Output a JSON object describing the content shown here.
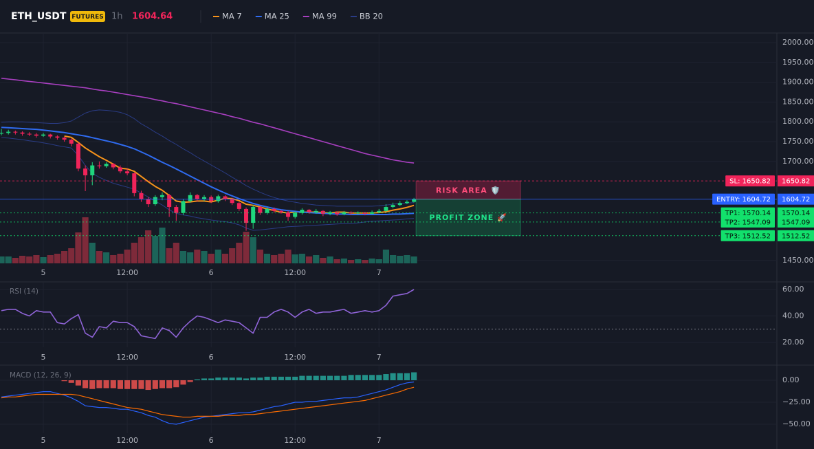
{
  "header": {
    "symbol": "ETH_USDT",
    "badge": "FUTURES",
    "interval": "1h",
    "last_price": "1604.64"
  },
  "chart_data": [
    {
      "type": "candlestick",
      "xlim": [
        -0.2,
        110.9
      ],
      "xticks": [
        {
          "value": 6,
          "label": "5"
        },
        {
          "value": 18,
          "label": "12:00"
        },
        {
          "value": 30,
          "label": "6"
        },
        {
          "value": 42,
          "label": "12:00"
        },
        {
          "value": 54,
          "label": "7"
        }
      ],
      "ylim": [
        1437.5,
        2024.3
      ],
      "yticks": [
        {
          "value": 2000,
          "label": "2000.00"
        },
        {
          "value": 1950,
          "label": "1950.00"
        },
        {
          "value": 1900,
          "label": "1900.00"
        },
        {
          "value": 1850,
          "label": "1850.00"
        },
        {
          "value": 1800,
          "label": "1800.00"
        },
        {
          "value": 1750,
          "label": "1750.00"
        },
        {
          "value": 1700,
          "label": "1700.00"
        },
        {
          "value": 1450,
          "label": "1450.00"
        }
      ],
      "grid": true,
      "up_color": "#1fd67d",
      "down_color": "#f0245a",
      "volume_up_color": "#1c6459",
      "volume_down_color": "#7e2a3a",
      "ohlc": [
        [
          1770,
          1782,
          1766,
          1772
        ],
        [
          1772,
          1780,
          1768,
          1775
        ],
        [
          1775,
          1778,
          1768,
          1773
        ],
        [
          1773,
          1776,
          1765,
          1770
        ],
        [
          1770,
          1774,
          1764,
          1768
        ],
        [
          1768,
          1772,
          1760,
          1765
        ],
        [
          1765,
          1772,
          1762,
          1768
        ],
        [
          1768,
          1770,
          1758,
          1763
        ],
        [
          1763,
          1766,
          1755,
          1760
        ],
        [
          1760,
          1762,
          1750,
          1755
        ],
        [
          1755,
          1758,
          1738,
          1745
        ],
        [
          1745,
          1748,
          1675,
          1682
        ],
        [
          1682,
          1690,
          1625,
          1665
        ],
        [
          1665,
          1698,
          1640,
          1690
        ],
        [
          1690,
          1700,
          1682,
          1688
        ],
        [
          1688,
          1698,
          1684,
          1694
        ],
        [
          1694,
          1696,
          1680,
          1685
        ],
        [
          1685,
          1690,
          1670,
          1675
        ],
        [
          1675,
          1682,
          1665,
          1670
        ],
        [
          1670,
          1672,
          1612,
          1620
        ],
        [
          1620,
          1626,
          1598,
          1605
        ],
        [
          1605,
          1610,
          1585,
          1592
        ],
        [
          1592,
          1615,
          1588,
          1610
        ],
        [
          1610,
          1622,
          1602,
          1615
        ],
        [
          1615,
          1618,
          1560,
          1585
        ],
        [
          1585,
          1590,
          1550,
          1570
        ],
        [
          1570,
          1605,
          1565,
          1600
        ],
        [
          1600,
          1622,
          1596,
          1615
        ],
        [
          1615,
          1618,
          1598,
          1605
        ],
        [
          1605,
          1615,
          1600,
          1610
        ],
        [
          1610,
          1614,
          1595,
          1600
        ],
        [
          1600,
          1616,
          1596,
          1612
        ],
        [
          1612,
          1615,
          1600,
          1605
        ],
        [
          1605,
          1608,
          1590,
          1595
        ],
        [
          1595,
          1598,
          1575,
          1580
        ],
        [
          1580,
          1584,
          1525,
          1545
        ],
        [
          1545,
          1590,
          1530,
          1585
        ],
        [
          1585,
          1588,
          1565,
          1570
        ],
        [
          1570,
          1585,
          1566,
          1580
        ],
        [
          1580,
          1584,
          1570,
          1575
        ],
        [
          1575,
          1578,
          1568,
          1572
        ],
        [
          1572,
          1575,
          1550,
          1560
        ],
        [
          1560,
          1574,
          1556,
          1570
        ],
        [
          1570,
          1582,
          1566,
          1578
        ],
        [
          1578,
          1580,
          1568,
          1572
        ],
        [
          1572,
          1580,
          1568,
          1575
        ],
        [
          1575,
          1577,
          1562,
          1568
        ],
        [
          1568,
          1575,
          1564,
          1572
        ],
        [
          1572,
          1574,
          1563,
          1567
        ],
        [
          1567,
          1575,
          1564,
          1572
        ],
        [
          1572,
          1574,
          1565,
          1569
        ],
        [
          1569,
          1574,
          1566,
          1571
        ],
        [
          1571,
          1573,
          1564,
          1568
        ],
        [
          1568,
          1576,
          1566,
          1572
        ],
        [
          1572,
          1580,
          1570,
          1575
        ],
        [
          1575,
          1592,
          1573,
          1585
        ],
        [
          1585,
          1596,
          1582,
          1590
        ],
        [
          1590,
          1600,
          1587,
          1595
        ],
        [
          1595,
          1602,
          1592,
          1598
        ],
        [
          1598,
          1608,
          1596,
          1604.64
        ]
      ],
      "volume": [
        10,
        10,
        8,
        11,
        10,
        12,
        9,
        12,
        14,
        18,
        22,
        45,
        67,
        30,
        18,
        16,
        12,
        14,
        20,
        30,
        38,
        48,
        40,
        52,
        22,
        30,
        18,
        16,
        20,
        18,
        14,
        20,
        14,
        22,
        30,
        46,
        38,
        20,
        14,
        12,
        14,
        20,
        13,
        14,
        10,
        12,
        8,
        10,
        6,
        7,
        5,
        6,
        5,
        7,
        6,
        20,
        12,
        11,
        12,
        10
      ],
      "series": [
        {
          "name": "MA 7",
          "color": "#f7931a",
          "values": [
            null,
            null,
            null,
            null,
            null,
            null,
            null,
            null,
            null,
            1764,
            1761,
            1748,
            1734,
            1723,
            1712,
            1703,
            1693,
            1683,
            1681,
            1675,
            1662,
            1649,
            1637,
            1627,
            1614,
            1600,
            1597,
            1598,
            1600,
            1600,
            1598,
            1602,
            1607,
            1606,
            1601,
            1592,
            1589,
            1585,
            1580,
            1576,
            1572,
            1570,
            1573,
            1572,
            1572,
            1572,
            1571,
            1570,
            1572,
            1572,
            1570,
            1570,
            1570,
            1570,
            1571,
            1573,
            1577,
            1580,
            1584,
            1589
          ]
        },
        {
          "name": "MA 25",
          "color": "#2f6bf0",
          "values": [
            1786,
            1785,
            1784,
            1783,
            1782,
            1781,
            1779,
            1777,
            1775,
            1773,
            1770,
            1767,
            1764,
            1760,
            1756,
            1752,
            1748,
            1743,
            1738,
            1732,
            1724,
            1716,
            1707,
            1698,
            1690,
            1681,
            1672,
            1663,
            1654,
            1645,
            1636,
            1628,
            1620,
            1613,
            1606,
            1600,
            1594,
            1589,
            1585,
            1581,
            1578,
            1576,
            1574,
            1572,
            1571,
            1570,
            1569,
            1568,
            1567,
            1567,
            1566,
            1566,
            1566,
            1566,
            1566,
            1566,
            1567,
            1567,
            1568,
            1569
          ]
        },
        {
          "name": "MA 99",
          "color": "#a83fc0",
          "values": [
            1910,
            1908,
            1906,
            1904,
            1902,
            1900,
            1898,
            1896,
            1894,
            1892,
            1890,
            1888,
            1886,
            1883,
            1880,
            1878,
            1875,
            1872,
            1869,
            1866,
            1863,
            1860,
            1856,
            1853,
            1849,
            1846,
            1842,
            1838,
            1834,
            1830,
            1826,
            1822,
            1818,
            1813,
            1809,
            1804,
            1799,
            1795,
            1790,
            1785,
            1780,
            1775,
            1770,
            1765,
            1760,
            1755,
            1750,
            1745,
            1740,
            1735,
            1730,
            1725,
            1720,
            1716,
            1712,
            1708,
            1704,
            1701,
            1698,
            1696
          ]
        }
      ],
      "bands": {
        "name": "BB 20",
        "color": "#2a3c86",
        "upper": [
          1799,
          1800,
          1800,
          1800,
          1799,
          1798,
          1797,
          1796,
          1796,
          1798,
          1802,
          1812,
          1822,
          1828,
          1830,
          1829,
          1827,
          1824,
          1818,
          1808,
          1795,
          1785,
          1774,
          1764,
          1753,
          1743,
          1732,
          1722,
          1711,
          1701,
          1691,
          1681,
          1671,
          1660,
          1650,
          1639,
          1630,
          1622,
          1615,
          1609,
          1604,
          1600,
          1597,
          1594,
          1592,
          1590,
          1589,
          1588,
          1587,
          1587,
          1587,
          1587,
          1587,
          1587,
          1588,
          1590,
          1592,
          1594,
          1595,
          1596
        ],
        "lower": [
          1760,
          1759,
          1757,
          1755,
          1752,
          1750,
          1747,
          1744,
          1740,
          1737,
          1734,
          1715,
          1690,
          1670,
          1660,
          1652,
          1645,
          1640,
          1635,
          1630,
          1620,
          1610,
          1600,
          1590,
          1578,
          1569,
          1565,
          1562,
          1558,
          1555,
          1552,
          1550,
          1548,
          1545,
          1540,
          1532,
          1526,
          1527,
          1529,
          1531,
          1533,
          1535,
          1536,
          1537,
          1538,
          1539,
          1540,
          1541,
          1542,
          1543,
          1543,
          1545,
          1547,
          1549,
          1550,
          1551,
          1552,
          1553,
          1555,
          1556
        ]
      },
      "levels": [
        {
          "label": "SL: 1650.82",
          "value": 1650.82,
          "color": "#f0245a",
          "text_color": "#ffffff",
          "style": "dashed"
        },
        {
          "label": "ENTRY: 1604.72",
          "value": 1604.72,
          "color": "#2962ff",
          "text_color": "#ffffff",
          "style": "solid"
        },
        {
          "label": "TP1: 1570.14",
          "value": 1570.14,
          "color": "#12e06c",
          "text_color": "#06140c",
          "style": "dotted"
        },
        {
          "label": "TP2: 1547.09",
          "value": 1547.09,
          "color": "#12e06c",
          "text_color": "#06140c",
          "style": "dotted"
        },
        {
          "label": "TP3: 1512.52",
          "value": 1512.52,
          "color": "#12e06c",
          "text_color": "#06140c",
          "style": "dotted"
        }
      ],
      "zones": [
        "RISK AREA 🛡️",
        "PROFIT ZONE 🚀"
      ]
    },
    {
      "type": "line",
      "title": "RSI (14)",
      "ylim": [
        16.4,
        65.2
      ],
      "yticks": [
        {
          "value": 60,
          "label": "60.00"
        },
        {
          "value": 40,
          "label": "40.00"
        },
        {
          "value": 20,
          "label": "20.00"
        }
      ],
      "grid": true,
      "level": 30,
      "series": [
        {
          "color": "#8e63d6",
          "values": [
            44,
            45,
            45,
            42,
            40,
            44,
            43,
            43,
            35,
            34,
            38,
            41,
            27,
            24,
            32,
            31,
            36,
            35,
            35,
            32,
            25,
            24,
            23,
            31,
            29,
            24,
            31,
            36,
            40,
            39,
            37,
            35,
            37,
            36,
            35,
            31,
            27,
            39,
            39,
            43,
            45,
            43,
            39,
            43,
            45,
            42,
            43,
            43,
            44,
            45,
            42,
            43,
            44,
            43,
            44,
            48,
            55,
            56,
            57,
            60
          ]
        }
      ]
    },
    {
      "type": "macd",
      "title": "MACD (12, 26, 9)",
      "ylim": [
        -60.2,
        16.4
      ],
      "yticks": [
        {
          "value": 0,
          "label": "0.00"
        },
        {
          "value": -25,
          "label": "−25.00"
        },
        {
          "value": -50,
          "label": "−50.00"
        }
      ],
      "grid": true,
      "up_color": "#26a69a",
      "down_color": "#ef5350",
      "histogram": [
        null,
        null,
        null,
        null,
        null,
        null,
        null,
        null,
        null,
        -1,
        -3,
        -6,
        -9,
        -10,
        -9,
        -9,
        -9,
        -10,
        -10,
        -10,
        -10,
        -11,
        -10,
        -9,
        -9,
        -8,
        -5,
        -2,
        1,
        2,
        2,
        3,
        3,
        3,
        3,
        2,
        3,
        3,
        4,
        4,
        4,
        4,
        4,
        5,
        5,
        5,
        5,
        5,
        5,
        5,
        6,
        6,
        6,
        6,
        6,
        7,
        8,
        8,
        8,
        9
      ],
      "series": [
        {
          "color": "#2962ff",
          "values": [
            -19,
            -18,
            -17,
            -16,
            -15,
            -14,
            -13,
            -13,
            -15,
            -17,
            -20,
            -24,
            -29,
            -30,
            -31,
            -31,
            -32,
            -33,
            -33,
            -35,
            -37,
            -40,
            -42,
            -46,
            -49,
            -50,
            -48,
            -46,
            -44,
            -42,
            -41,
            -40,
            -39,
            -38,
            -37,
            -37,
            -36,
            -34,
            -32,
            -30,
            -29,
            -27,
            -25,
            -25,
            -24,
            -24,
            -23,
            -22,
            -21,
            -20,
            -20,
            -19,
            -17,
            -15,
            -13,
            -11,
            -8,
            -5,
            -3,
            -2
          ]
        },
        {
          "color": "#ff6d00",
          "values": [
            -20,
            -19,
            -19,
            -18,
            -17,
            -16,
            -16,
            -16,
            -16,
            -16,
            -16,
            -17,
            -19,
            -21,
            -23,
            -25,
            -27,
            -29,
            -31,
            -32,
            -33,
            -35,
            -37,
            -39,
            -40,
            -41,
            -42,
            -42,
            -41,
            -41,
            -41,
            -41,
            -40,
            -40,
            -40,
            -39,
            -39,
            -38,
            -37,
            -36,
            -35,
            -34,
            -33,
            -32,
            -31,
            -30,
            -29,
            -28,
            -27,
            -26,
            -25,
            -24,
            -23,
            -21,
            -19,
            -17,
            -15,
            -13,
            -10,
            -8
          ]
        }
      ]
    }
  ]
}
